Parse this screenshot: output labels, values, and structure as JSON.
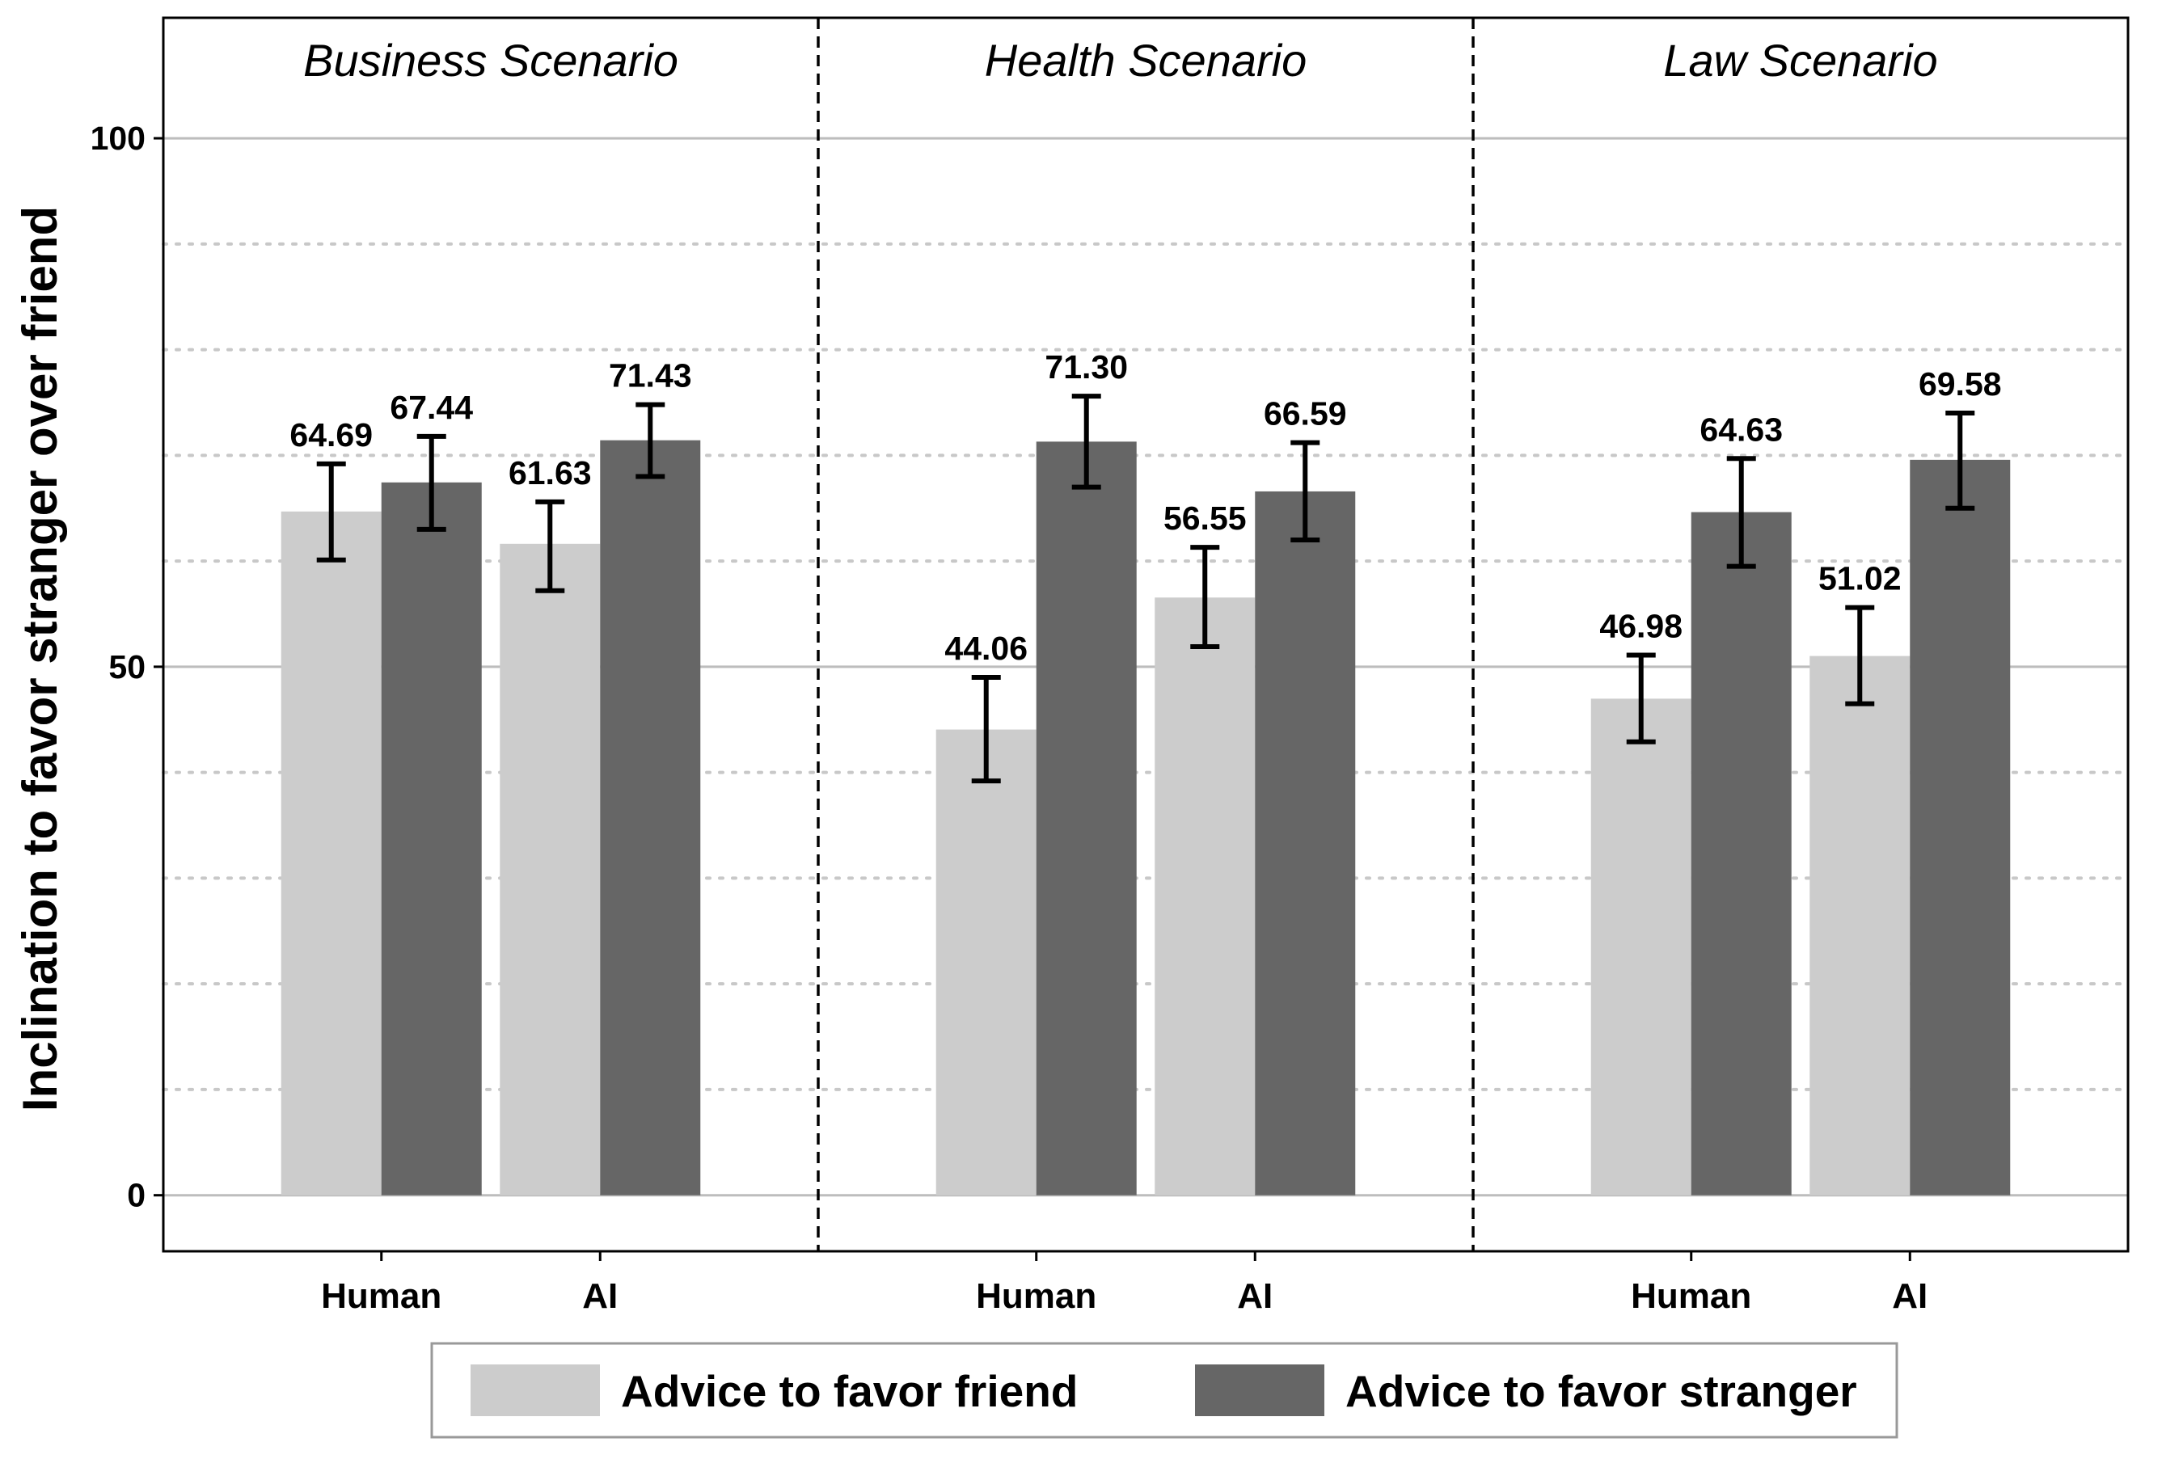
{
  "chart_data": {
    "type": "bar",
    "ylabel": "Inclination to favor stranger over friend",
    "ylim": [
      -5.3,
      111.4
    ],
    "yticks": [
      0,
      50,
      100
    ],
    "minor_gridlines": [
      10,
      20,
      30,
      40,
      60,
      70,
      80,
      90
    ],
    "legend": {
      "placement": "bottom",
      "entries": [
        "Advice to favor friend",
        "Advice to favor stranger"
      ]
    },
    "colors": {
      "Advice to favor friend": "#cccccc",
      "Advice to favor stranger": "#666666"
    },
    "panels": [
      {
        "title": "Business Scenario",
        "categories": [
          "Human",
          "AI"
        ],
        "series": [
          {
            "name": "Advice to favor friend",
            "values": [
              64.69,
              61.63
            ],
            "labels": [
              "64.69",
              "61.63"
            ],
            "error_low": [
              60.1,
              57.2
            ],
            "error_high": [
              69.2,
              65.6
            ]
          },
          {
            "name": "Advice to favor stranger",
            "values": [
              67.44,
              71.43
            ],
            "labels": [
              "67.44",
              "71.43"
            ],
            "error_low": [
              63.0,
              68.0
            ],
            "error_high": [
              71.8,
              74.8
            ]
          }
        ]
      },
      {
        "title": "Health Scenario",
        "categories": [
          "Human",
          "AI"
        ],
        "series": [
          {
            "name": "Advice to favor friend",
            "values": [
              44.06,
              56.55
            ],
            "labels": [
              "44.06",
              "56.55"
            ],
            "error_low": [
              39.2,
              51.9
            ],
            "error_high": [
              49.0,
              61.3
            ]
          },
          {
            "name": "Advice to favor stranger",
            "values": [
              71.3,
              66.59
            ],
            "labels": [
              "71.30",
              "66.59"
            ],
            "error_low": [
              67.0,
              62.0
            ],
            "error_high": [
              75.6,
              71.2
            ]
          }
        ]
      },
      {
        "title": "Law Scenario",
        "categories": [
          "Human",
          "AI"
        ],
        "series": [
          {
            "name": "Advice to favor friend",
            "values": [
              46.98,
              51.02
            ],
            "labels": [
              "46.98",
              "51.02"
            ],
            "error_low": [
              42.9,
              46.5
            ],
            "error_high": [
              51.1,
              55.6
            ]
          },
          {
            "name": "Advice to favor stranger",
            "values": [
              64.63,
              69.58
            ],
            "labels": [
              "64.63",
              "69.58"
            ],
            "error_low": [
              59.5,
              65.0
            ],
            "error_high": [
              69.7,
              74.0
            ]
          }
        ]
      }
    ]
  }
}
